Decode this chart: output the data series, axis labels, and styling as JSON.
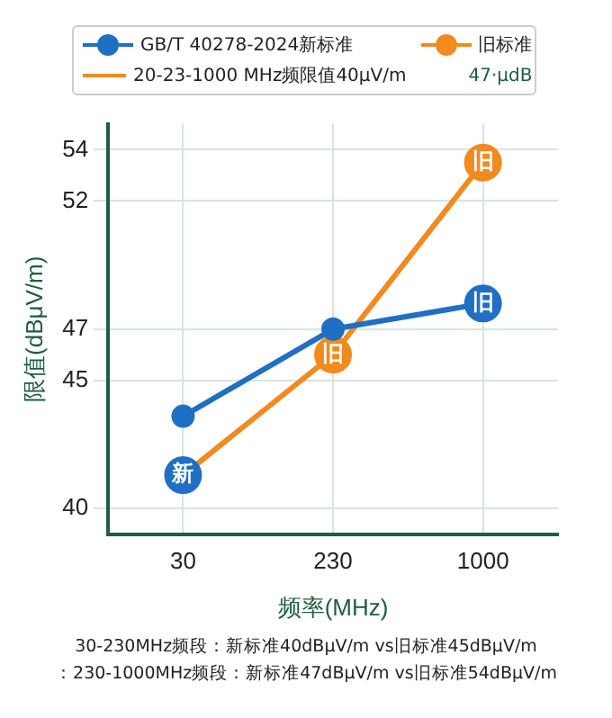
{
  "chart_data": {
    "type": "line",
    "xlabel": "频率(MHz)",
    "ylabel": "限值(dBμV/m)",
    "categories": [
      "30",
      "230",
      "1000"
    ],
    "series": [
      {
        "name": "GB/T 40278-2024新标准",
        "color": "#1f6fc4",
        "values": [
          43.6,
          47,
          48
        ],
        "colors": [
          "#1f6fc4",
          "#1f6fc4",
          "#1f6fc4"
        ]
      },
      {
        "name": "旧标准",
        "color": "#f28a1e",
        "values": [
          41.3,
          46,
          53.5
        ],
        "colors": [
          "#1f6fc4",
          "#f28a1e",
          "#f28a1e"
        ]
      }
    ],
    "ylim": [
      39,
      55
    ],
    "yticks": [
      40,
      45,
      47,
      52,
      54
    ],
    "grid": true,
    "legend": "top",
    "marker": "circle",
    "line_style": "solid",
    "annotations": [
      "20-23-1000 MHz频限值40μV/m",
      "47·μdB",
      "30-230MHz频段：新标准40dBμV/m vs旧标准45dBμV/m",
      "：230-1000MHz频段：新标准47dBμV/m vs旧标准54dBμV/m",
      {
        "text": "新",
        "x": "30",
        "y": 41.3
      },
      {
        "text": "旧",
        "x": "230",
        "y": 46
      },
      {
        "text": "旧",
        "x": "1000",
        "y": 53.5
      },
      {
        "text": "旧",
        "x": "1000",
        "y": 48
      }
    ]
  }
}
